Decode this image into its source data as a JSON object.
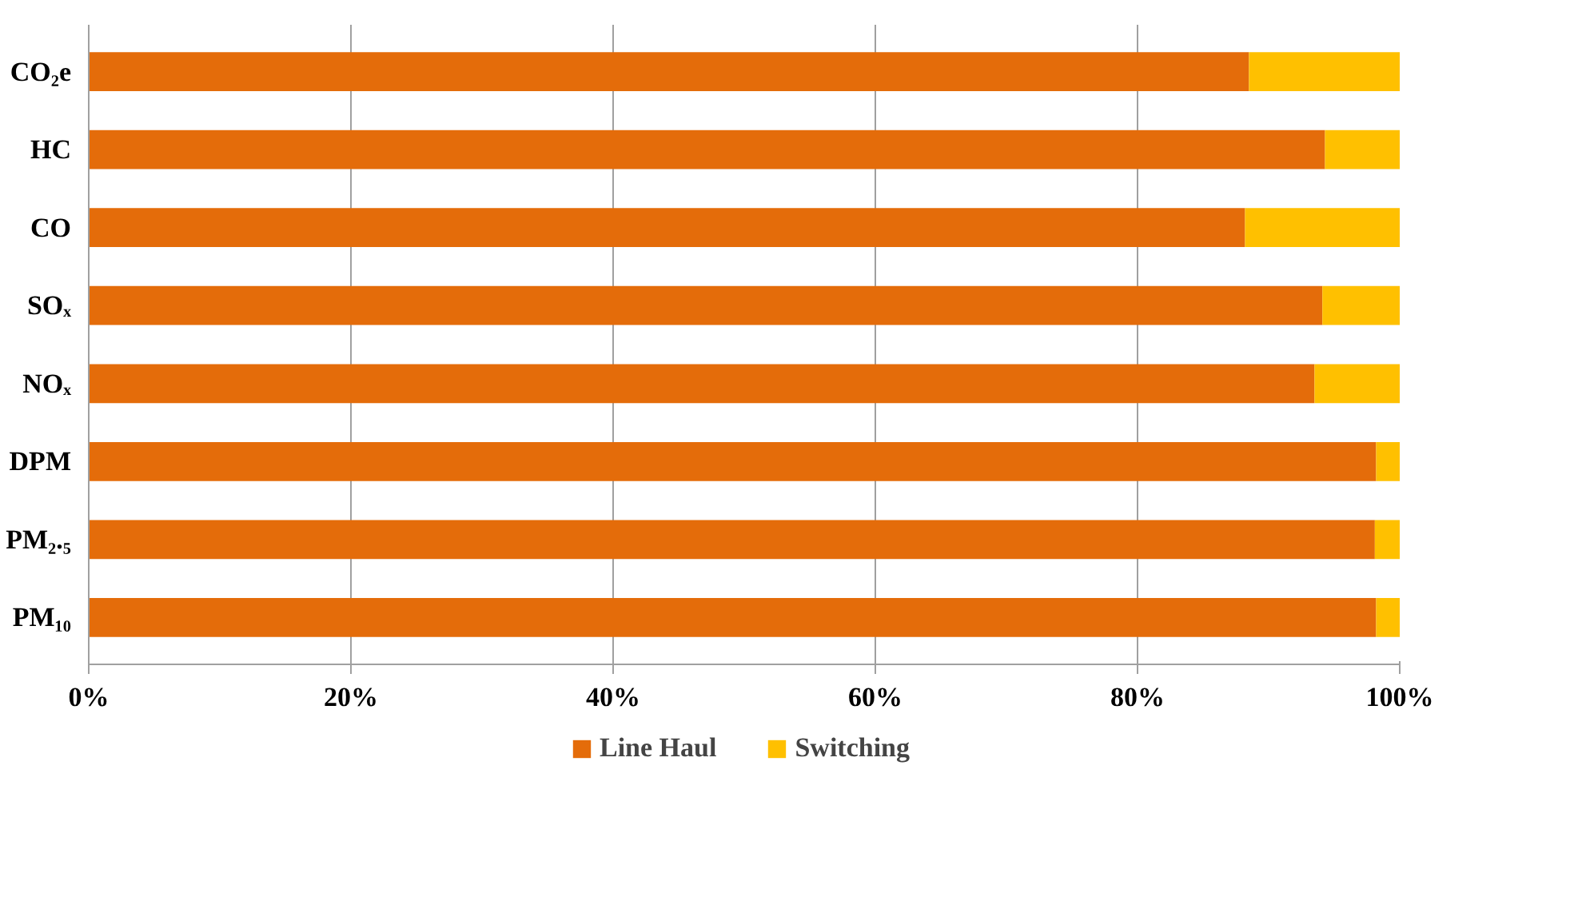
{
  "chart_data": {
    "type": "bar",
    "orientation": "horizontal",
    "stacked": true,
    "categories": [
      "CO₂e",
      "HC",
      "CO",
      "SOₓ",
      "NOₓ",
      "DPM",
      "PM₂.₅",
      "PM₁₀"
    ],
    "series": [
      {
        "name": "Line Haul",
        "color": "#e46c0a",
        "values": [
          88.5,
          94.3,
          88.2,
          94.1,
          93.5,
          98.2,
          98.1,
          98.2
        ]
      },
      {
        "name": "Switching",
        "color": "#ffc000",
        "values": [
          11.5,
          5.7,
          11.8,
          5.9,
          6.5,
          1.8,
          1.9,
          1.8
        ]
      }
    ],
    "xlim": [
      0,
      100
    ],
    "xticks": [
      {
        "value": 0,
        "label": "0%"
      },
      {
        "value": 20,
        "label": "20%"
      },
      {
        "value": 40,
        "label": "40%"
      },
      {
        "value": 60,
        "label": "60%"
      },
      {
        "value": 80,
        "label": "80%"
      },
      {
        "value": 100,
        "label": "100%"
      }
    ],
    "grid": "x",
    "legend": "bottom"
  }
}
